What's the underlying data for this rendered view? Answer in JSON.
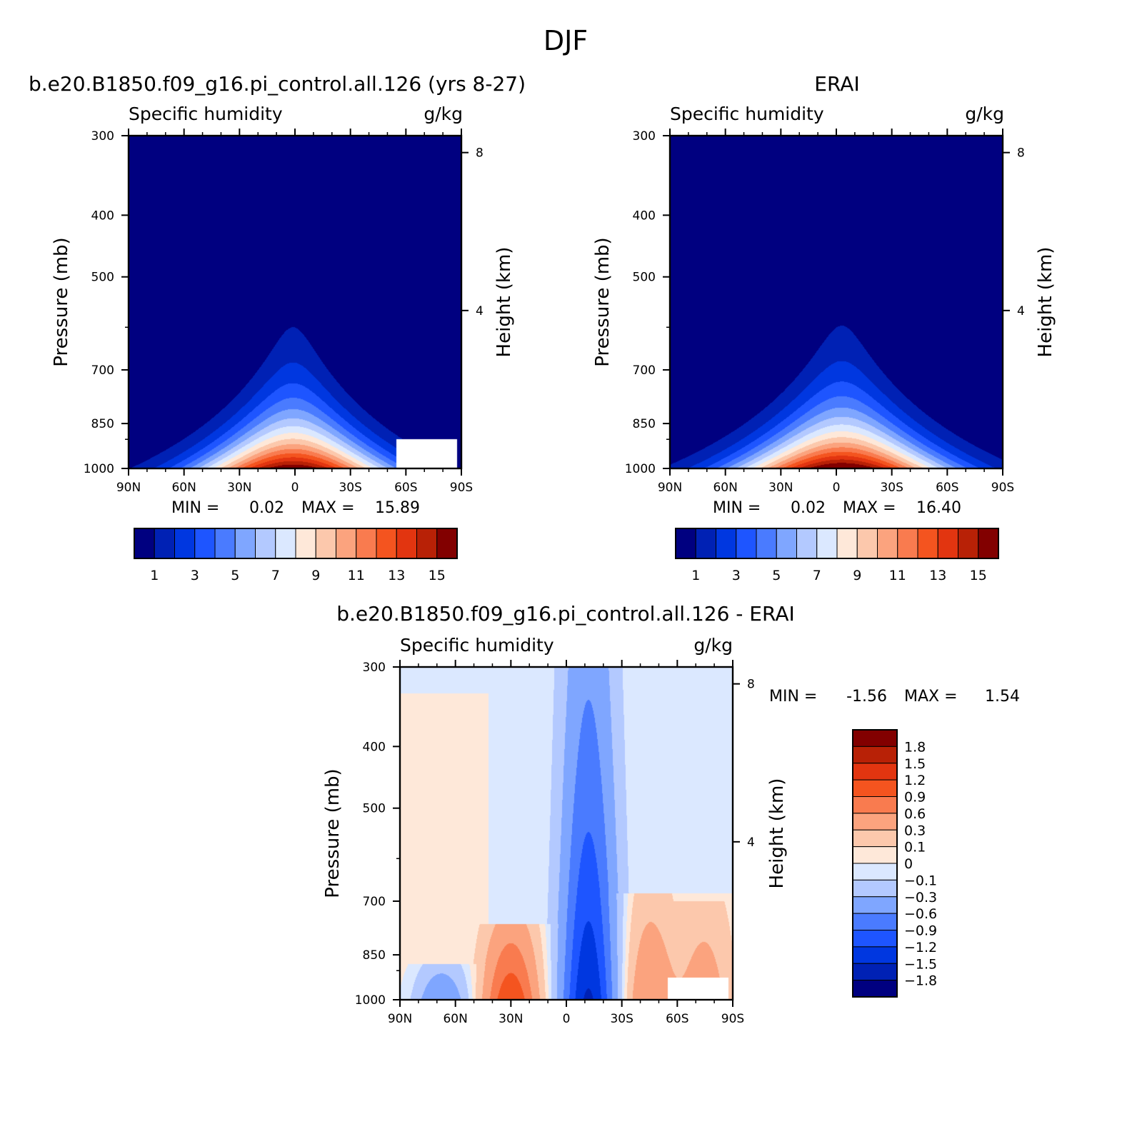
{
  "figure_title": "DJF",
  "chart_data": [
    {
      "type": "heatmap",
      "title": "b.e20.B1850.f09_g16.pi_control.all.126 (yrs 8-27)",
      "subtitle_left": "Specific humidity",
      "subtitle_right": "g/kg",
      "xlabel": "",
      "ylabel": "Pressure (mb)",
      "ylabel_right": "Height (km)",
      "x_ticks": [
        "90N",
        "60N",
        "30N",
        "0",
        "30S",
        "60S",
        "90S"
      ],
      "y_ticks": [
        "300",
        "400",
        "500",
        "700",
        "850",
        "1000"
      ],
      "y_right_ticks": [
        "8",
        "4"
      ],
      "ylim": [
        1000,
        300
      ],
      "min_label": "MIN =",
      "min_value": "0.02",
      "max_label": "MAX =",
      "max_value": "15.89",
      "peak_value": 15.89,
      "peak_latitude": 1,
      "spread": 1.0,
      "masked_region": "terrain near 60S-90S",
      "colorbar": {
        "orientation": "horizontal",
        "labels": [
          "1",
          "3",
          "5",
          "7",
          "9",
          "11",
          "13",
          "15"
        ],
        "colors": [
          "#000080",
          "#0021b4",
          "#0037e0",
          "#1e55ff",
          "#4a7bff",
          "#7fa6ff",
          "#b3c9ff",
          "#dbe8ff",
          "#fee8d9",
          "#fcc8ac",
          "#fba37e",
          "#f97b4f",
          "#f4541f",
          "#e23510",
          "#b82106",
          "#820000"
        ]
      }
    },
    {
      "type": "heatmap",
      "title": "ERAI",
      "subtitle_left": "Specific humidity",
      "subtitle_right": "g/kg",
      "xlabel": "",
      "ylabel": "Pressure (mb)",
      "ylabel_right": "Height (km)",
      "x_ticks": [
        "90N",
        "60N",
        "30N",
        "0",
        "30S",
        "60S",
        "90S"
      ],
      "y_ticks": [
        "300",
        "400",
        "500",
        "700",
        "850",
        "1000"
      ],
      "y_right_ticks": [
        "8",
        "4"
      ],
      "ylim": [
        1000,
        300
      ],
      "min_label": "MIN =",
      "min_value": "0.02",
      "max_label": "MAX =",
      "max_value": "16.40",
      "peak_value": 16.4,
      "peak_latitude": -3,
      "spread": 1.1,
      "colorbar": {
        "orientation": "horizontal",
        "labels": [
          "1",
          "3",
          "5",
          "7",
          "9",
          "11",
          "13",
          "15"
        ],
        "colors": [
          "#000080",
          "#0021b4",
          "#0037e0",
          "#1e55ff",
          "#4a7bff",
          "#7fa6ff",
          "#b3c9ff",
          "#dbe8ff",
          "#fee8d9",
          "#fcc8ac",
          "#fba37e",
          "#f97b4f",
          "#f4541f",
          "#e23510",
          "#b82106",
          "#820000"
        ]
      }
    },
    {
      "type": "heatmap",
      "title": "b.e20.B1850.f09_g16.pi_control.all.126 - ERAI",
      "subtitle_left": "Specific humidity",
      "subtitle_right": "g/kg",
      "xlabel": "",
      "ylabel": "Pressure (mb)",
      "ylabel_right": "Height (km)",
      "x_ticks": [
        "90N",
        "60N",
        "30N",
        "0",
        "30S",
        "60S",
        "90S"
      ],
      "y_ticks": [
        "300",
        "400",
        "500",
        "700",
        "850",
        "1000"
      ],
      "y_right_ticks": [
        "8",
        "4"
      ],
      "ylim": [
        1000,
        300
      ],
      "min_label": "MIN =",
      "min_value": "-1.56",
      "max_label": "MAX =",
      "max_value": "1.54",
      "masked_region": "terrain near 60S-90S",
      "difference_features": [
        {
          "kind": "moist",
          "lat": 85,
          "p_top": 330,
          "value": 0.05
        },
        {
          "kind": "moist",
          "lat": 30,
          "p_top": 760,
          "value": 1.2
        },
        {
          "kind": "moist",
          "lat": -45,
          "p_top": 680,
          "value": 0.6
        },
        {
          "kind": "moist",
          "lat": -75,
          "p_top": 700,
          "value": 0.5
        },
        {
          "kind": "dry",
          "lat": -12,
          "p_top": 300,
          "value": -1.56
        },
        {
          "kind": "dry",
          "lat": 68,
          "p_top": 880,
          "value": -0.6
        }
      ],
      "colorbar": {
        "orientation": "vertical",
        "labels": [
          "1.8",
          "1.5",
          "1.2",
          "0.9",
          "0.6",
          "0.3",
          "0.1",
          "0",
          "-0.1",
          "-0.3",
          "-0.6",
          "-0.9",
          "-1.2",
          "-1.5",
          "-1.8"
        ],
        "colors": [
          "#820000",
          "#b82106",
          "#e23510",
          "#f4541f",
          "#f97b4f",
          "#fba37e",
          "#fcc8ac",
          "#fee8d9",
          "#dbe8ff",
          "#b3c9ff",
          "#7fa6ff",
          "#4a7bff",
          "#1e55ff",
          "#0037e0",
          "#0021b4",
          "#000080"
        ]
      }
    }
  ]
}
